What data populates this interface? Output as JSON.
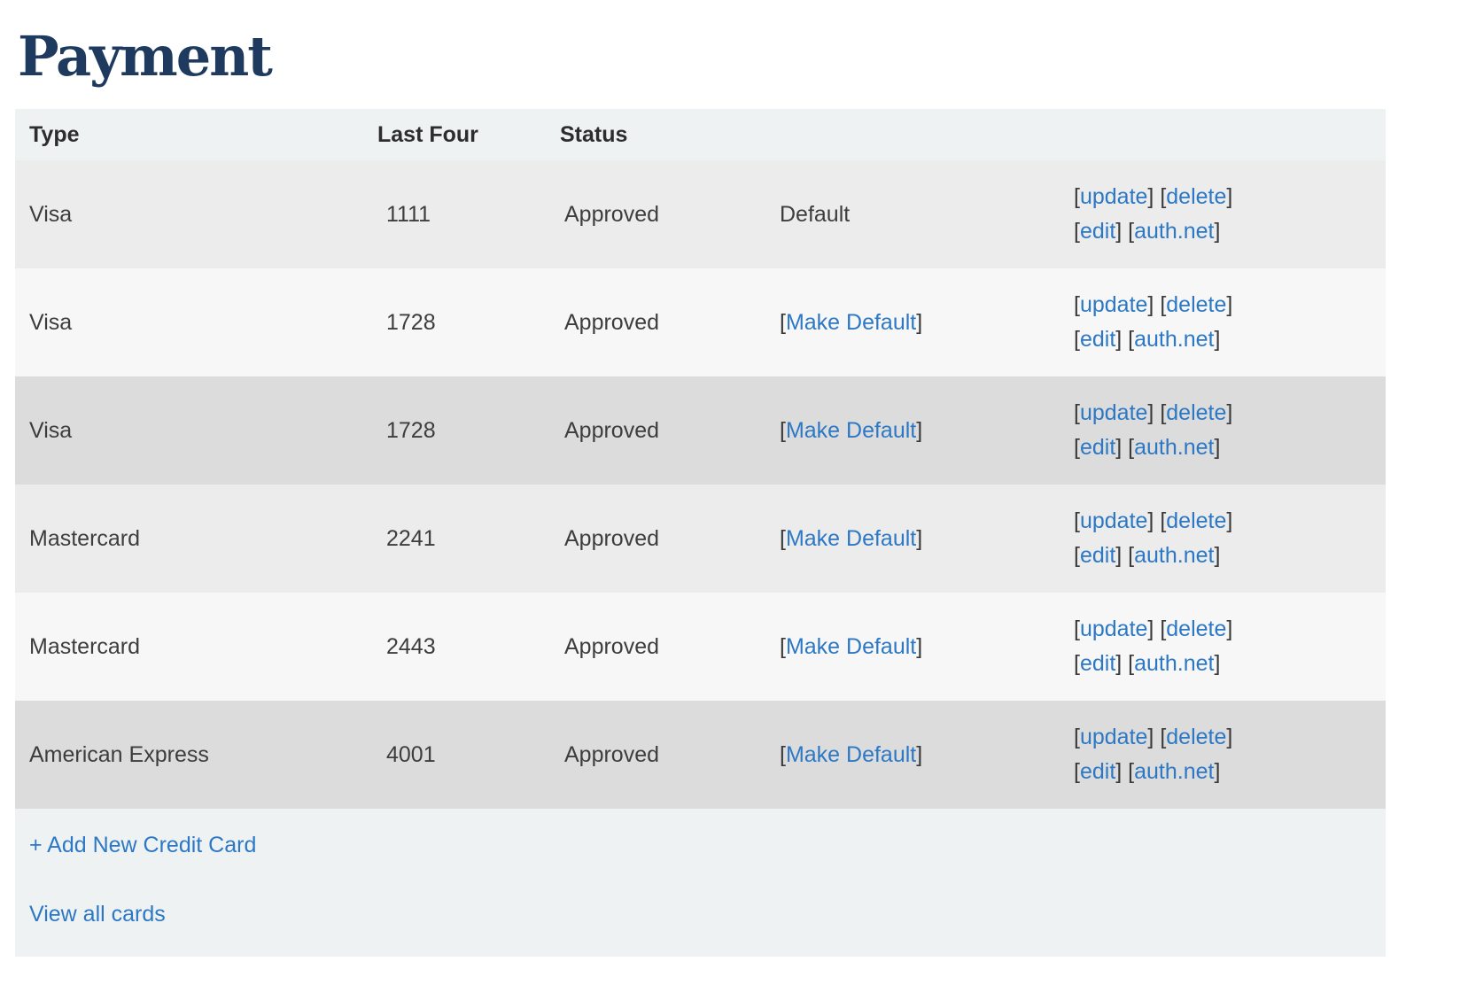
{
  "page": {
    "title": "Payment"
  },
  "colors": {
    "heading": "#1e3a5e",
    "link": "#2c78c5",
    "header_bg": "#eff2f3",
    "row_gray": "#ececec",
    "row_light": "#f7f7f7",
    "row_dark": "#dcdcdc",
    "text": "#3d3d3d"
  },
  "table": {
    "columns": [
      {
        "label": "Type"
      },
      {
        "label": "Last Four"
      },
      {
        "label": "Status"
      }
    ],
    "rows": [
      {
        "type": "Visa",
        "last_four": "1111",
        "status": "Approved",
        "default_text": "Default",
        "default_is_link": false,
        "shade": "gray"
      },
      {
        "type": "Visa",
        "last_four": "1728",
        "status": "Approved",
        "default_text": "Make Default",
        "default_is_link": true,
        "shade": "light"
      },
      {
        "type": "Visa",
        "last_four": "1728",
        "status": "Approved",
        "default_text": "Make Default",
        "default_is_link": true,
        "shade": "dark"
      },
      {
        "type": "Mastercard",
        "last_four": "2241",
        "status": "Approved",
        "default_text": "Make Default",
        "default_is_link": true,
        "shade": "gray"
      },
      {
        "type": "Mastercard",
        "last_four": "2443",
        "status": "Approved",
        "default_text": "Make Default",
        "default_is_link": true,
        "shade": "light"
      },
      {
        "type": "American Express",
        "last_four": "4001",
        "status": "Approved",
        "default_text": "Make Default",
        "default_is_link": true,
        "shade": "dark"
      }
    ],
    "actions": [
      [
        "update",
        "delete"
      ],
      [
        "edit",
        "auth.net"
      ]
    ]
  },
  "footer": {
    "add_card_label": "+ Add New Credit Card",
    "view_all_label": "View all cards"
  }
}
